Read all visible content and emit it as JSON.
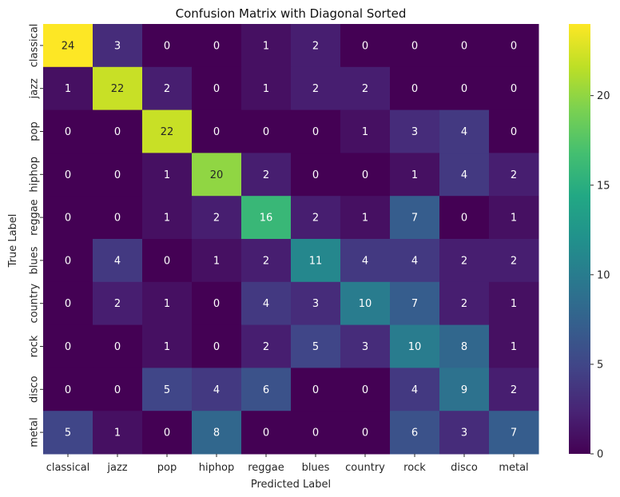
{
  "chart_data": {
    "type": "heatmap",
    "title": "Confusion Matrix with Diagonal Sorted",
    "xlabel": "Predicted Label",
    "ylabel": "True Label",
    "x_categories": [
      "classical",
      "jazz",
      "pop",
      "hiphop",
      "reggae",
      "blues",
      "country",
      "rock",
      "disco",
      "metal"
    ],
    "y_categories": [
      "classical",
      "jazz",
      "pop",
      "hiphop",
      "reggae",
      "blues",
      "country",
      "rock",
      "disco",
      "metal"
    ],
    "values": [
      [
        24,
        3,
        0,
        0,
        1,
        2,
        0,
        0,
        0,
        0
      ],
      [
        1,
        22,
        2,
        0,
        1,
        2,
        2,
        0,
        0,
        0
      ],
      [
        0,
        0,
        22,
        0,
        0,
        0,
        1,
        3,
        4,
        0
      ],
      [
        0,
        0,
        1,
        20,
        2,
        0,
        0,
        1,
        4,
        2
      ],
      [
        0,
        0,
        1,
        2,
        16,
        2,
        1,
        7,
        0,
        1
      ],
      [
        0,
        4,
        0,
        1,
        2,
        11,
        4,
        4,
        2,
        2
      ],
      [
        0,
        2,
        1,
        0,
        4,
        3,
        10,
        7,
        2,
        1
      ],
      [
        0,
        0,
        1,
        0,
        2,
        5,
        3,
        10,
        8,
        1
      ],
      [
        0,
        0,
        5,
        4,
        6,
        0,
        0,
        4,
        9,
        2
      ],
      [
        5,
        1,
        0,
        8,
        0,
        0,
        0,
        6,
        3,
        7
      ]
    ],
    "colormap": "viridis",
    "vmin": 0,
    "vmax": 24,
    "colorbar_ticks": [
      0,
      5,
      10,
      15,
      20
    ],
    "annotations": true
  }
}
